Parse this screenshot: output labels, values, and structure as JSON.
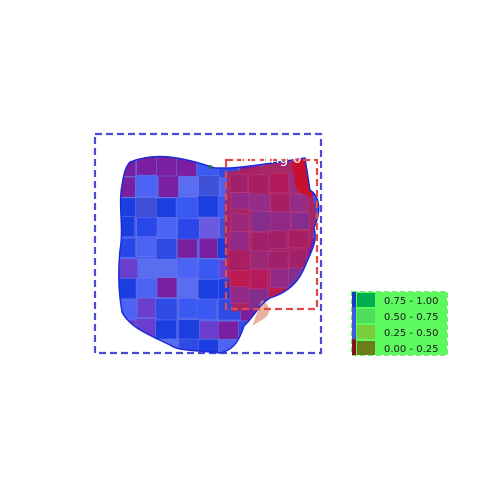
{
  "map": {
    "left_panel_label": "",
    "right_panel_label": "Ending 0",
    "legend_title": "",
    "county_palette": [
      "#1b3ee0",
      "#3a58f2",
      "#5a6cf0",
      "#6a3fcf",
      "#7a1f9f",
      "#2f4be6",
      "#4c63f3",
      "#6b5ae0",
      "#3e4fd8",
      "#2a48ea"
    ],
    "right_palette": [
      "#8e2b8e",
      "#a11f6a",
      "#b8195a",
      "#912f8f",
      "#c01a4e",
      "#9b2a7a",
      "#7e2f96",
      "#aa1e62"
    ],
    "legend": [
      {
        "label": "0.75 - 1.00",
        "color": "#00b050"
      },
      {
        "label": "0.50 - 0.75",
        "color": "#4ddf5b"
      },
      {
        "label": "0.25 - 0.50",
        "color": "#7ccd3a"
      },
      {
        "label": "0.00 - 0.25",
        "color": "#6b7d1a"
      }
    ],
    "legend_strip_colors": [
      "#1a3dbf",
      "#3b5bd9",
      "#3b5bd9",
      "#8a1020"
    ]
  }
}
